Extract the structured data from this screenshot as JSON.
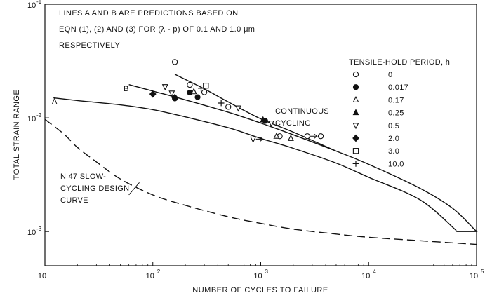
{
  "chart_data": {
    "type": "scatter",
    "title": "",
    "xlabel": "NUMBER  OF  CYCLES  TO  FAILURE",
    "ylabel": "TOTAL  STRAIN  RANGE",
    "xscale": "log",
    "yscale": "log",
    "xlim": [
      10,
      100000
    ],
    "ylim": [
      0.0005,
      0.1
    ],
    "grid": false,
    "x_ticks": [
      {
        "value": 10,
        "base": "10",
        "exp": ""
      },
      {
        "value": 100,
        "base": "10",
        "exp": "2"
      },
      {
        "value": 1000,
        "base": "10",
        "exp": "3"
      },
      {
        "value": 10000,
        "base": "10",
        "exp": "4"
      },
      {
        "value": 100000,
        "base": "10",
        "exp": "5"
      }
    ],
    "y_ticks": [
      {
        "value": 0.1,
        "base": "10",
        "exp": "-1"
      },
      {
        "value": 0.01,
        "base": "10",
        "exp": "-2"
      },
      {
        "value": 0.001,
        "base": "10",
        "exp": "-3"
      }
    ],
    "annotation": [
      "LINES  A  AND  B  ARE  PREDICTIONS  BASED  ON",
      "EQN  (1), (2)  AND  (3)  FOR  (λ - p)  OF 0.1  AND 1.0  μm",
      "RESPECTIVELY"
    ],
    "legend_title": "TENSILE-HOLD PERIOD, h",
    "legend_position": "top-right",
    "lines": [
      {
        "id": "line-a",
        "label": "A",
        "style": "solid",
        "points": [
          [
            12,
            0.015
          ],
          [
            20,
            0.0142
          ],
          [
            50,
            0.013
          ],
          [
            100,
            0.0118
          ],
          [
            200,
            0.0102
          ],
          [
            500,
            0.0082
          ],
          [
            1000,
            0.0066
          ],
          [
            2000,
            0.0054
          ],
          [
            5000,
            0.004
          ],
          [
            10000,
            0.003
          ],
          [
            30000,
            0.0019
          ],
          [
            65000,
            0.00102
          ]
        ]
      },
      {
        "id": "line-b",
        "label": "B",
        "style": "solid",
        "points": [
          [
            60,
            0.0196
          ],
          [
            100,
            0.0172
          ],
          [
            200,
            0.0144
          ],
          [
            500,
            0.0112
          ],
          [
            1000,
            0.009
          ],
          [
            2000,
            0.0071
          ],
          [
            5000,
            0.0051
          ],
          [
            10000,
            0.0039
          ],
          [
            30000,
            0.0024
          ],
          [
            60000,
            0.0016
          ],
          [
            95000,
            0.00105
          ],
          [
            100000,
            0.001
          ],
          [
            65000,
            0.001
          ]
        ]
      },
      {
        "id": "line-continuous",
        "label": "CONTINUOUS CYCLING",
        "style": "solid",
        "points": [
          [
            160,
            0.0242
          ],
          [
            300,
            0.018
          ],
          [
            500,
            0.0138
          ],
          [
            1000,
            0.0098
          ],
          [
            2000,
            0.0075
          ],
          [
            5000,
            0.0051
          ]
        ]
      },
      {
        "id": "line-design",
        "label": "N 47  SLOW- CYCLING  DESIGN  CURVE",
        "style": "dashed",
        "points": [
          [
            10,
            0.0097
          ],
          [
            15,
            0.0072
          ],
          [
            20,
            0.0055
          ],
          [
            30,
            0.0041
          ],
          [
            50,
            0.0029
          ],
          [
            100,
            0.0021
          ],
          [
            200,
            0.0017
          ],
          [
            500,
            0.00135
          ],
          [
            1000,
            0.00118
          ],
          [
            2000,
            0.00105
          ],
          [
            5000,
            0.00095
          ],
          [
            10000,
            0.00089
          ],
          [
            30000,
            0.00083
          ],
          [
            100000,
            0.00077
          ]
        ]
      }
    ],
    "curve_labels": [
      {
        "id": "A",
        "lines": [
          "A"
        ]
      },
      {
        "id": "B",
        "lines": [
          "B"
        ]
      },
      {
        "id": "continuous",
        "lines": [
          "CONTINUOUS",
          "CYCLING"
        ]
      },
      {
        "id": "design",
        "lines": [
          "N 47  SLOW-",
          "CYCLING  DESIGN",
          "CURVE"
        ]
      }
    ],
    "series": [
      {
        "name": "0",
        "marker": "open-circle",
        "points": [
          [
            160,
            0.031
          ],
          [
            220,
            0.0195
          ],
          [
            300,
            0.0168
          ],
          [
            500,
            0.0125
          ],
          [
            1500,
            0.0069
          ],
          [
            2700,
            0.0069
          ],
          [
            3600,
            0.0069
          ]
        ]
      },
      {
        "name": "0.017",
        "marker": "filled-circle",
        "points": [
          [
            160,
            0.0148
          ],
          [
            220,
            0.0167
          ],
          [
            260,
            0.0152
          ],
          [
            1100,
            0.0094
          ]
        ]
      },
      {
        "name": "0.17",
        "marker": "open-triangle",
        "points": [
          [
            240,
            0.017
          ],
          [
            1400,
            0.0069
          ],
          [
            1900,
            0.0066
          ]
        ]
      },
      {
        "name": "0.25",
        "marker": "filled-triangle",
        "points": [
          [
            1050,
            0.0096
          ]
        ]
      },
      {
        "name": "0.5",
        "marker": "open-inverted-triangle",
        "points": [
          [
            130,
            0.0188
          ],
          [
            150,
            0.0165
          ],
          [
            620,
            0.0122
          ],
          [
            850,
            0.0065
          ],
          [
            1250,
            0.009
          ]
        ]
      },
      {
        "name": "2.0",
        "marker": "filled-diamond",
        "points": [
          [
            100,
            0.0162
          ],
          [
            160,
            0.0151
          ]
        ]
      },
      {
        "name": "3.0",
        "marker": "open-square",
        "points": [
          [
            310,
            0.0192
          ]
        ]
      },
      {
        "name": "10.0",
        "marker": "plus",
        "points": [
          [
            280,
            0.0182
          ],
          [
            430,
            0.0135
          ]
        ]
      }
    ],
    "arrow_points": [
      [
        850,
        0.0065
      ],
      [
        2700,
        0.0069
      ]
    ]
  }
}
